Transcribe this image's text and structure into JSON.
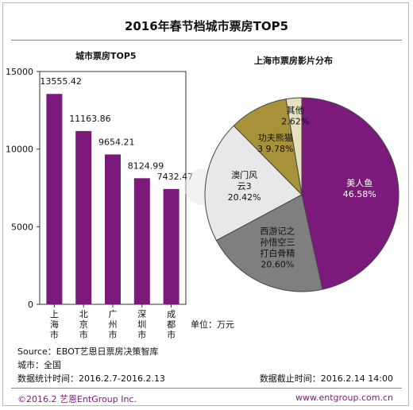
{
  "header": {
    "title": "2016年春节档城市票房TOP5"
  },
  "chart_data": [
    {
      "type": "bar",
      "title": "城市票房TOP5",
      "categories": [
        "上海市",
        "北京市",
        "广州市",
        "深圳市",
        "成都市"
      ],
      "values": [
        13555.42,
        11163.86,
        9654.21,
        8124.99,
        7432.47
      ],
      "value_labels": [
        "13555.42",
        "11163.86",
        "9654.21",
        "8124.99",
        "7432.47"
      ],
      "ylim": [
        0,
        15000
      ],
      "yticks": [
        0,
        5000,
        10000,
        15000
      ],
      "ytick_labels": [
        "0",
        "5000",
        "10000",
        "15000"
      ],
      "bar_color": "#7b1a7b",
      "unit_label": "单位：万元"
    },
    {
      "type": "pie",
      "title": "上海市票房影片分布",
      "slices": [
        {
          "label_lines": [
            "美人鱼",
            "46.58%"
          ],
          "value": 46.58,
          "color": "#7b1a7b",
          "text_color": "#ffffff"
        },
        {
          "label_lines": [
            "西游记之",
            "孙悟空三",
            "打白骨精",
            "20.60%"
          ],
          "value": 20.6,
          "color": "#7f7f7f",
          "text_color": "#111111"
        },
        {
          "label_lines": [
            "澳门风",
            "云3",
            "20.42%"
          ],
          "value": 20.42,
          "color": "#e8e8e8",
          "text_color": "#111111"
        },
        {
          "label_lines": [
            "功夫熊猫",
            "3 9.78%"
          ],
          "value": 9.78,
          "color": "#a7923a",
          "text_color": "#111111"
        },
        {
          "label_lines": [
            "其他",
            "2.62%"
          ],
          "value": 2.62,
          "color": "#e7e0bd",
          "text_color": "#111111"
        }
      ]
    }
  ],
  "footer": {
    "source": "Source：EBOT艺恩日票房决策智库",
    "city": "城市：全国",
    "stat_period": "数据统计时间：2016.2.7-2016.2.13",
    "cutoff": "数据截止时间：2016.2.14 14:00",
    "copyright": "©2016.2 艺恩EntGroup Inc.",
    "website": "www.entgroup.com.cn"
  }
}
